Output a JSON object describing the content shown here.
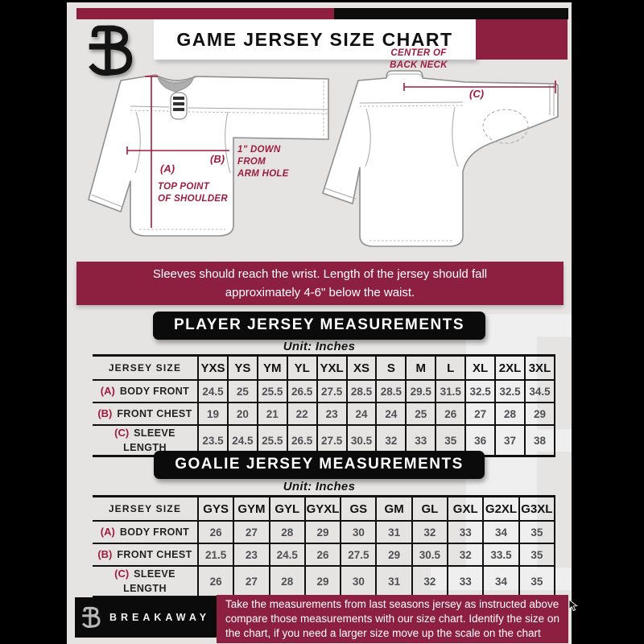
{
  "header": {
    "title": "GAME JERSEY SIZE CHART"
  },
  "diagram": {
    "front_label_a": "(A)",
    "front_caption_a": "TOP POINT\nOF SHOULDER",
    "front_label_b": "(B)",
    "front_caption_b": "1\" DOWN\nFROM\nARM HOLE",
    "back_label_c": "(C)",
    "back_caption_c": "CENTER OF\nBACK NECK"
  },
  "notice": "Sleeves should reach the wrist. Length of the jersey should fall\napproximately 4-6\" below the waist.",
  "player": {
    "title": "PLAYER JERSEY MEASUREMENTS",
    "unit": "Unit: Inches",
    "size_label": "JERSEY SIZE",
    "sizes": [
      "YXS",
      "YS",
      "YM",
      "YL",
      "YXL",
      "XS",
      "S",
      "M",
      "L",
      "XL",
      "2XL",
      "3XL"
    ],
    "rows": [
      {
        "key": "(A)",
        "label": "BODY FRONT",
        "values": [
          "24.5",
          "25",
          "25.5",
          "26.5",
          "27.5",
          "28.5",
          "28.5",
          "29.5",
          "31.5",
          "32.5",
          "32.5",
          "34.5"
        ]
      },
      {
        "key": "(B)",
        "label": "FRONT CHEST",
        "values": [
          "19",
          "20",
          "21",
          "22",
          "23",
          "24",
          "24",
          "25",
          "26",
          "27",
          "28",
          "29"
        ]
      },
      {
        "key": "(C)",
        "label": "SLEEVE LENGTH",
        "values": [
          "23.5",
          "24.5",
          "25.5",
          "26.5",
          "27.5",
          "30.5",
          "32",
          "33",
          "35",
          "36",
          "37",
          "38"
        ]
      }
    ]
  },
  "goalie": {
    "title": "GOALIE JERSEY MEASUREMENTS",
    "unit": "Unit: Inches",
    "size_label": "JERSEY SIZE",
    "sizes": [
      "GYS",
      "GYM",
      "GYL",
      "GYXL",
      "GS",
      "GM",
      "GL",
      "GXL",
      "G2XL",
      "G3XL"
    ],
    "rows": [
      {
        "key": "(A)",
        "label": "BODY FRONT",
        "values": [
          "26",
          "27",
          "28",
          "29",
          "30",
          "31",
          "32",
          "33",
          "34",
          "35"
        ]
      },
      {
        "key": "(B)",
        "label": "FRONT CHEST",
        "values": [
          "21.5",
          "23",
          "24.5",
          "26",
          "27.5",
          "29",
          "30.5",
          "32",
          "33.5",
          "35"
        ]
      },
      {
        "key": "(C)",
        "label": "SLEEVE LENGTH",
        "values": [
          "26",
          "27",
          "28",
          "29",
          "30",
          "31",
          "32",
          "33",
          "34",
          "35"
        ]
      }
    ]
  },
  "footer": {
    "brand": "BREAKAWAY",
    "note": "Take the measurements from last seasons jersey as instructed above compare those measurements with our size chart. Identify the size on the chart, if you need a larger size move up the scale on the chart"
  },
  "watermark": "B",
  "colors": {
    "maroon": "#8d2040",
    "line_maroon": "#9e1c40",
    "black": "#0d0d0d",
    "background": "#e5e4e3"
  }
}
